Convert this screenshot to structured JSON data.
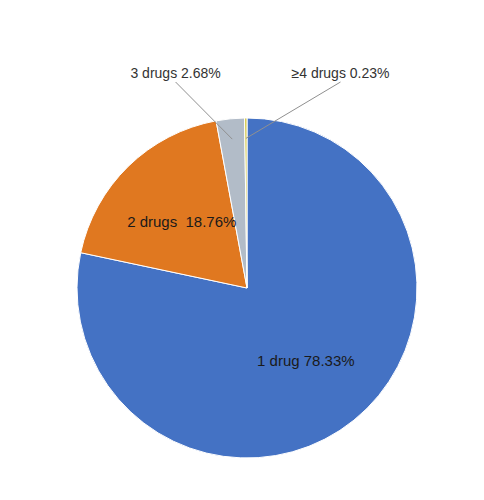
{
  "chart_data": {
    "type": "pie",
    "values": [
      78.33,
      18.76,
      2.68,
      0.23
    ],
    "value_labels": [
      "1 drug 78.33%",
      "2 drugs  18.76%",
      "3 drugs 2.68%",
      "≥4 drugs 0.23%"
    ],
    "colors": [
      "#4472C4",
      "#E07820",
      "#B2BCC8",
      "#D4C84A"
    ],
    "data_labels": true
  }
}
